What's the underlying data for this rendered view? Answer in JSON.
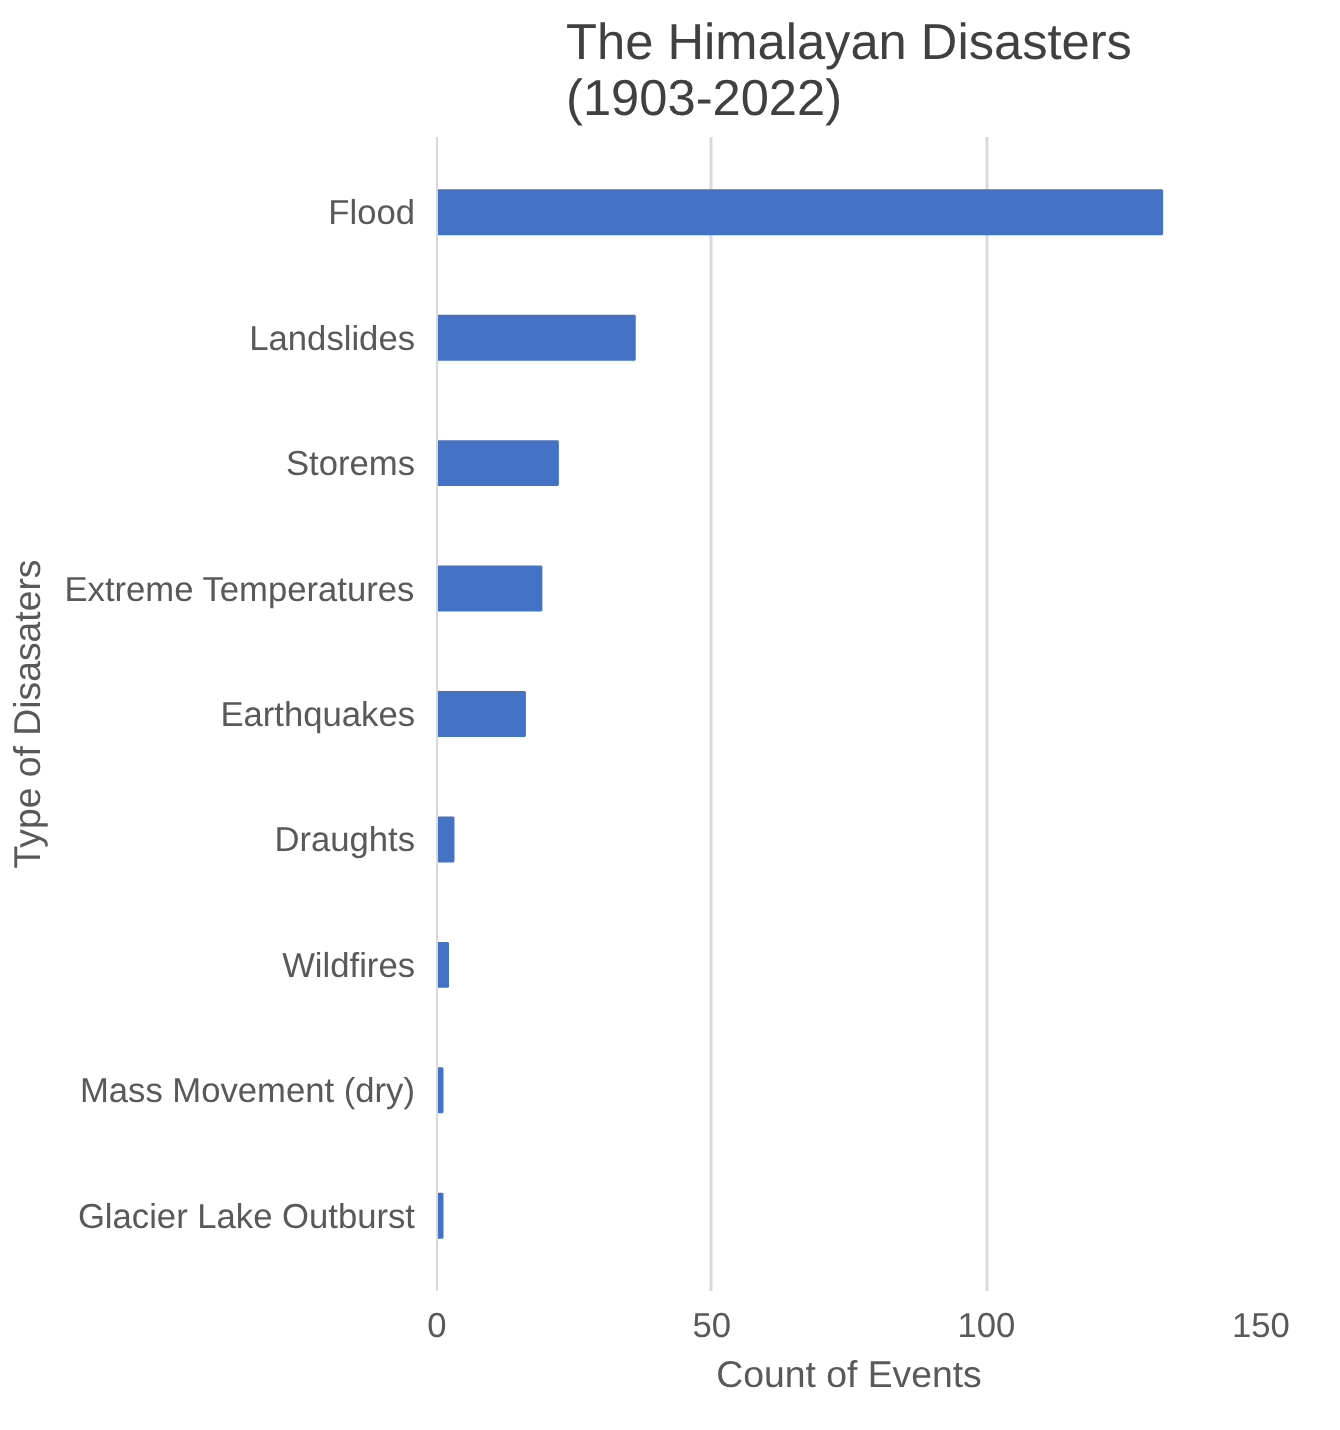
{
  "chart_data": {
    "type": "bar",
    "orientation": "horizontal",
    "title": "The Himalayan Disasters (1903-2022)",
    "xlabel": "Count of Events",
    "ylabel": "Type of Disasaters",
    "categories": [
      "Flood",
      "Landslides",
      "Storems",
      "Extreme Temperatures",
      "Earthquakes",
      "Draughts",
      "Wildfires",
      "Mass Movement (dry)",
      "Glacier Lake Outburst"
    ],
    "values": [
      132,
      36,
      22,
      19,
      16,
      3,
      2,
      1,
      1
    ],
    "color": "#4472c4",
    "xlim": [
      0,
      150
    ],
    "xticks": [
      0,
      50,
      100,
      150
    ],
    "grid": "x"
  }
}
